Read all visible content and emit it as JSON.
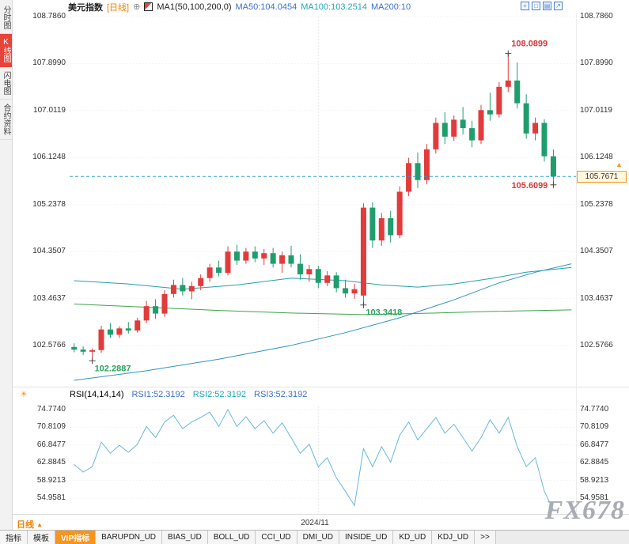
{
  "header": {
    "symbol": "美元指数",
    "period_tag": "[日线]",
    "ma_label": "MA1(50,100,200,0)",
    "ma50": "MA50:104.0454",
    "ma100": "MA100:103.2514",
    "ma200": "MA200:10"
  },
  "sidebar": {
    "tabs": [
      {
        "label": "分时图",
        "active": false
      },
      {
        "label": "K线图",
        "active": true
      },
      {
        "label": "闪电图",
        "active": false
      },
      {
        "label": "合约资料",
        "active": false
      }
    ]
  },
  "rsi_header": {
    "label": "RSI(14,14,14)",
    "rsi1": "RSI1:52.3192",
    "rsi2": "RSI2:52.3192",
    "rsi3": "RSI3:52.3192"
  },
  "bottom_left": {
    "label": "日线"
  },
  "watermark": "FX678",
  "bottom_tabs": [
    "指标",
    "模板",
    "VIP指标",
    "BARUPDN_UD",
    "BIAS_UD",
    "BOLL_UD",
    "CCI_UD",
    "DMI_UD",
    "INSIDE_UD",
    "KD_UD",
    "KDJ_UD",
    ">>"
  ],
  "colors": {
    "up": "#e23b3c",
    "down": "#1f9d6d",
    "accent_orange": "#f08300",
    "dashed_price_line": "#2aa0cc",
    "rsi_line": "#68b7dc"
  },
  "chart_data": {
    "type": "candlestick",
    "title": "美元指数 日线 (US Dollar Index, daily)",
    "slots": 56,
    "price_axis": [
      "108.7860",
      "107.8990",
      "107.0119",
      "106.1248",
      "105.2378",
      "104.3507",
      "103.4637",
      "102.5766"
    ],
    "last_price_label": "105.7671",
    "last_price": 105.7671,
    "x_axis": {
      "label": "2024/11",
      "slot": 27
    },
    "candles": [
      [
        102.55,
        102.62,
        102.45,
        102.5
      ],
      [
        102.5,
        102.56,
        102.4,
        102.46
      ],
      [
        102.46,
        102.52,
        102.2887,
        102.49
      ],
      [
        102.49,
        102.95,
        102.44,
        102.88
      ],
      [
        102.88,
        103.0,
        102.72,
        102.78
      ],
      [
        102.78,
        102.94,
        102.72,
        102.9
      ],
      [
        102.9,
        103.02,
        102.8,
        102.86
      ],
      [
        102.86,
        103.1,
        102.82,
        103.05
      ],
      [
        103.05,
        103.42,
        103.0,
        103.32
      ],
      [
        103.32,
        103.45,
        103.08,
        103.18
      ],
      [
        103.18,
        103.62,
        103.12,
        103.55
      ],
      [
        103.55,
        103.82,
        103.48,
        103.72
      ],
      [
        103.72,
        103.85,
        103.52,
        103.6
      ],
      [
        103.6,
        103.78,
        103.45,
        103.7
      ],
      [
        103.7,
        103.92,
        103.62,
        103.85
      ],
      [
        103.85,
        104.12,
        103.78,
        104.05
      ],
      [
        104.05,
        104.18,
        103.88,
        103.95
      ],
      [
        103.95,
        104.45,
        103.9,
        104.35
      ],
      [
        104.35,
        104.48,
        104.1,
        104.18
      ],
      [
        104.18,
        104.42,
        104.12,
        104.35
      ],
      [
        104.35,
        104.45,
        104.15,
        104.22
      ],
      [
        104.22,
        104.4,
        104.1,
        104.32
      ],
      [
        104.32,
        104.42,
        104.05,
        104.12
      ],
      [
        104.12,
        104.35,
        103.95,
        104.28
      ],
      [
        104.28,
        104.46,
        104.05,
        104.12
      ],
      [
        104.12,
        104.3,
        103.82,
        103.92
      ],
      [
        103.92,
        104.1,
        103.78,
        104.02
      ],
      [
        104.02,
        104.08,
        103.66,
        103.76
      ],
      [
        103.76,
        103.98,
        103.7,
        103.9
      ],
      [
        103.9,
        103.96,
        103.58,
        103.66
      ],
      [
        103.66,
        103.82,
        103.48,
        103.56
      ],
      [
        103.56,
        103.74,
        103.46,
        103.64
      ],
      [
        103.52,
        105.26,
        103.3418,
        105.18
      ],
      [
        105.18,
        105.28,
        104.42,
        104.56
      ],
      [
        104.56,
        105.08,
        104.46,
        104.98
      ],
      [
        104.98,
        105.12,
        104.52,
        104.66
      ],
      [
        104.66,
        105.58,
        104.6,
        105.48
      ],
      [
        105.48,
        106.12,
        105.4,
        106.02
      ],
      [
        106.02,
        106.22,
        105.55,
        105.7
      ],
      [
        105.7,
        106.38,
        105.62,
        106.28
      ],
      [
        106.28,
        106.88,
        106.2,
        106.78
      ],
      [
        106.78,
        106.98,
        106.38,
        106.52
      ],
      [
        106.52,
        106.92,
        106.44,
        106.84
      ],
      [
        106.84,
        107.08,
        106.56,
        106.68
      ],
      [
        106.68,
        106.82,
        106.32,
        106.45
      ],
      [
        106.45,
        107.12,
        106.38,
        107.02
      ],
      [
        107.02,
        107.35,
        106.82,
        106.94
      ],
      [
        106.94,
        107.55,
        106.88,
        107.46
      ],
      [
        107.46,
        108.0899,
        107.36,
        107.58
      ],
      [
        107.58,
        107.92,
        107.05,
        107.15
      ],
      [
        107.15,
        107.32,
        106.48,
        106.58
      ],
      [
        106.58,
        106.88,
        106.45,
        106.78
      ],
      [
        106.78,
        106.85,
        106.05,
        106.15
      ],
      [
        106.15,
        106.28,
        105.6099,
        105.7671
      ]
    ],
    "ma_lines": [
      {
        "name": "MA50",
        "color": "#25a0a8",
        "points": [
          [
            0,
            103.8
          ],
          [
            6,
            103.74
          ],
          [
            12,
            103.64
          ],
          [
            18,
            103.72
          ],
          [
            24,
            103.85
          ],
          [
            30,
            103.8
          ],
          [
            34,
            103.72
          ],
          [
            38,
            103.68
          ],
          [
            42,
            103.74
          ],
          [
            46,
            103.84
          ],
          [
            50,
            103.96
          ],
          [
            55,
            104.05
          ]
        ]
      },
      {
        "name": "MA100",
        "color": "#3fa34d",
        "points": [
          [
            0,
            103.36
          ],
          [
            8,
            103.3
          ],
          [
            16,
            103.24
          ],
          [
            24,
            103.19
          ],
          [
            32,
            103.16
          ],
          [
            40,
            103.19
          ],
          [
            46,
            103.22
          ],
          [
            55,
            103.25
          ]
        ]
      },
      {
        "name": "MA200",
        "color": "#2f93c0",
        "points": [
          [
            0,
            101.92
          ],
          [
            8,
            102.1
          ],
          [
            16,
            102.32
          ],
          [
            24,
            102.58
          ],
          [
            30,
            102.82
          ],
          [
            36,
            103.1
          ],
          [
            42,
            103.44
          ],
          [
            47,
            103.76
          ],
          [
            51,
            103.96
          ],
          [
            55,
            104.12
          ]
        ]
      }
    ],
    "markers": [
      {
        "slot": 48,
        "price": 108.0899,
        "label": "108.0899",
        "color": "#d8383a",
        "placement": "above"
      },
      {
        "slot": 53,
        "price": 105.6099,
        "label": "105.6099",
        "color": "#d8383a",
        "placement": "left"
      },
      {
        "slot": 32,
        "price": 103.3418,
        "label": "103.3418",
        "color": "#27a35f",
        "placement": "below"
      },
      {
        "slot": 2,
        "price": 102.2887,
        "label": "102.2887",
        "color": "#27a35f",
        "placement": "below"
      }
    ],
    "rsi": {
      "color": "#68b7dc",
      "axis": [
        "74.7740",
        "70.8109",
        "66.8477",
        "62.8845",
        "58.9213",
        "54.9581"
      ],
      "values": [
        62.5,
        60.8,
        62.0,
        67.5,
        65.0,
        66.8,
        65.2,
        67.0,
        71.0,
        68.5,
        72.0,
        73.5,
        70.5,
        72.0,
        73.0,
        74.2,
        71.0,
        74.77,
        71.0,
        73.2,
        70.5,
        72.3,
        69.5,
        71.8,
        68.5,
        65.0,
        67.0,
        62.0,
        64.0,
        59.5,
        56.5,
        53.3,
        66.0,
        62.0,
        66.5,
        63.0,
        69.0,
        72.0,
        68.0,
        70.5,
        73.0,
        69.5,
        71.5,
        68.5,
        65.5,
        68.5,
        72.5,
        69.5,
        73.0,
        66.5,
        62.0,
        64.0,
        56.5,
        52.3192
      ]
    }
  }
}
